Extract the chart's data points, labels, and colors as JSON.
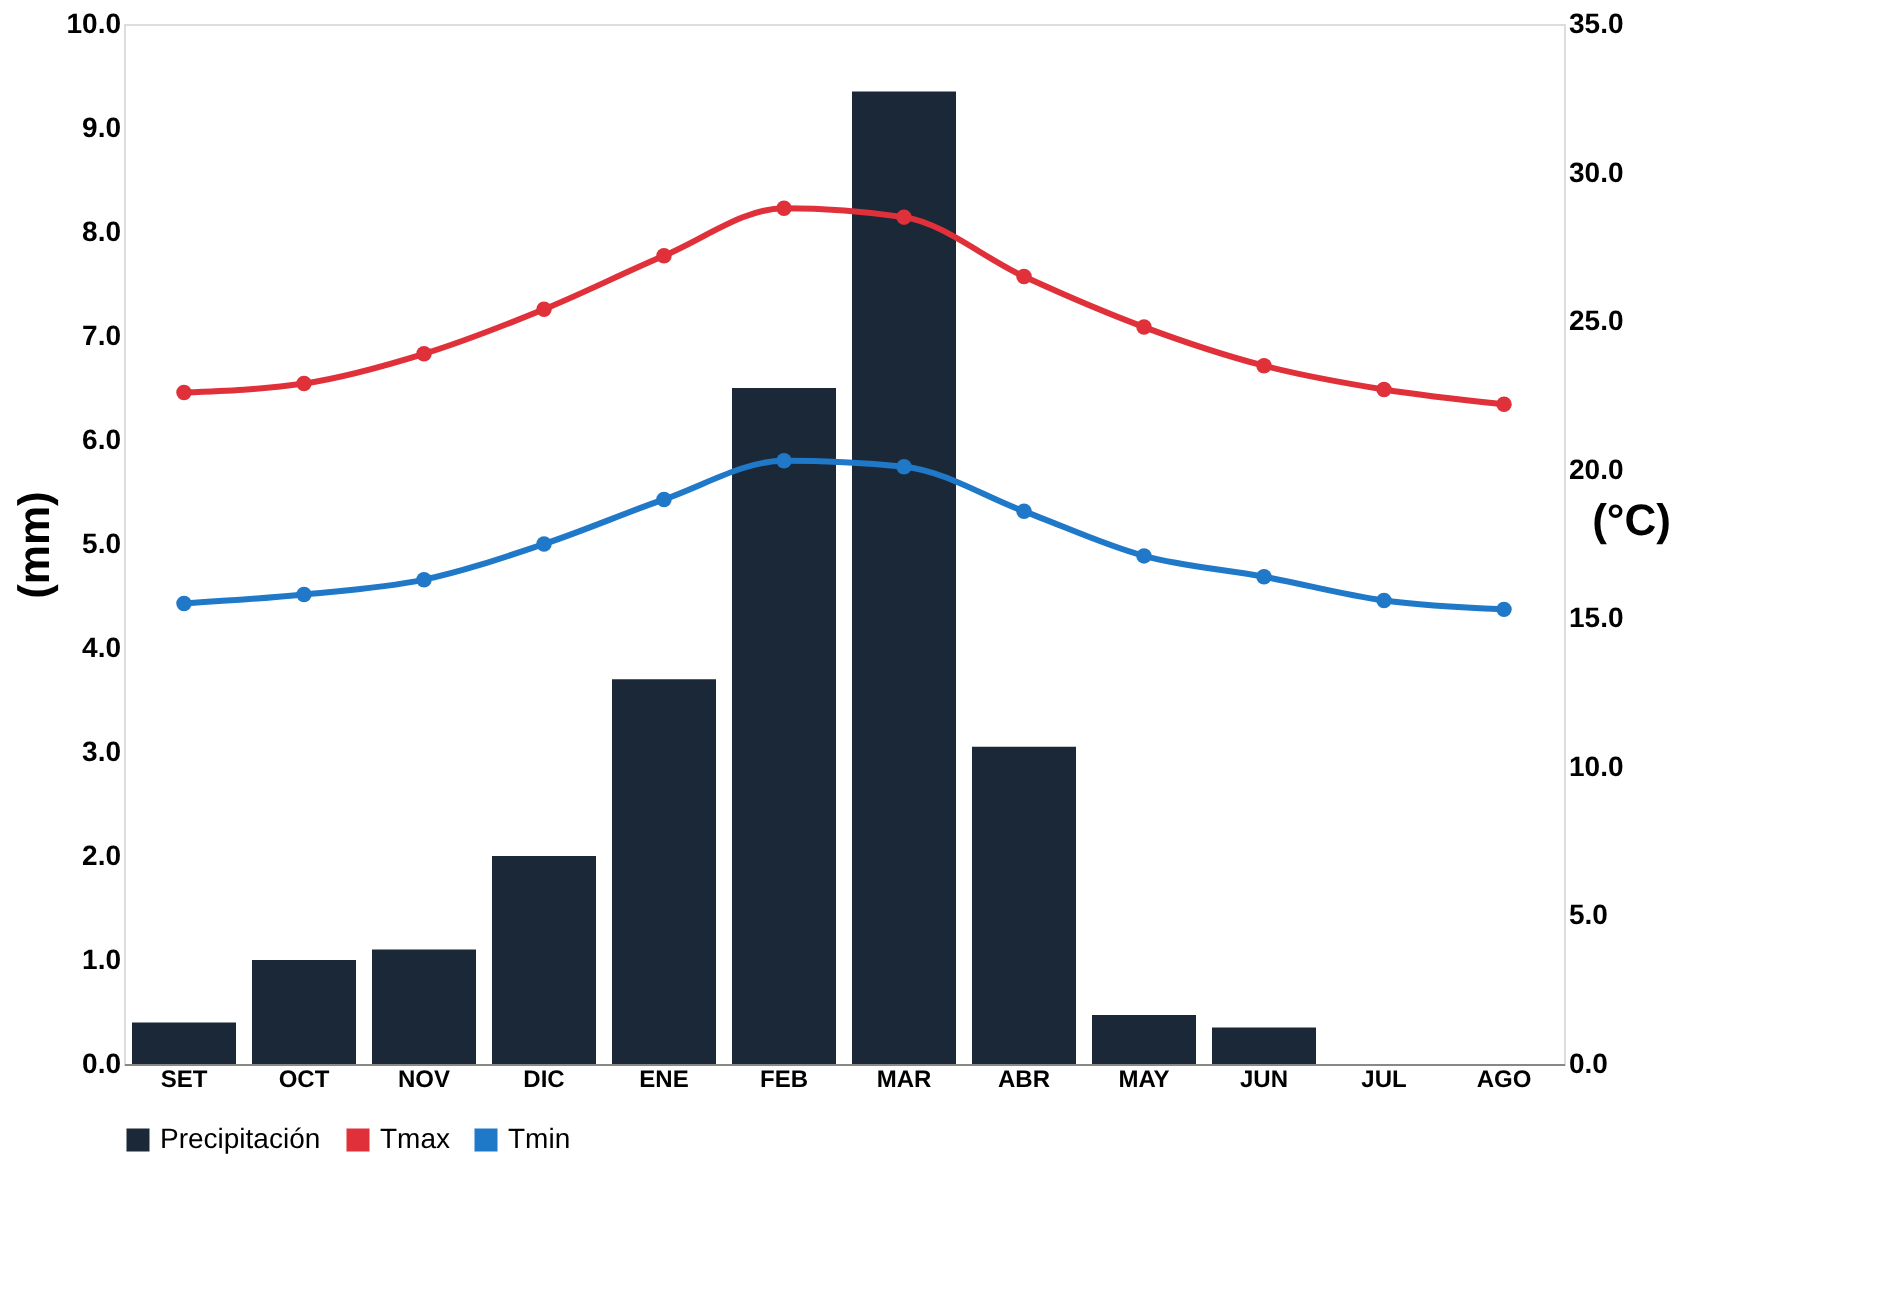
{
  "chart_data": {
    "type": "bar",
    "ylabel": "(mm)",
    "y2label": "(°C)",
    "categories": [
      "SET",
      "OCT",
      "NOV",
      "DIC",
      "ENE",
      "FEB",
      "MAR",
      "ABR",
      "MAY",
      "JUN",
      "JUL",
      "AGO"
    ],
    "series": [
      {
        "name": "Precipitación",
        "color": "#1b2838",
        "values": [
          0.4,
          1.0,
          1.1,
          2.0,
          3.7,
          6.5,
          9.35,
          3.05,
          0.47,
          0.35,
          0,
          0
        ]
      },
      {
        "name": "Tmax",
        "type": "line",
        "axis": "y2",
        "color": "#e0303a",
        "marker": "circle",
        "values": [
          22.6,
          22.9,
          23.9,
          25.4,
          27.2,
          28.8,
          28.5,
          26.5,
          24.8,
          23.5,
          22.7,
          22.2
        ]
      },
      {
        "name": "Tmin",
        "type": "line",
        "axis": "y2",
        "color": "#1f78c8",
        "marker": "circle",
        "values": [
          15.5,
          15.8,
          16.3,
          17.5,
          19.0,
          20.3,
          20.1,
          18.6,
          17.1,
          16.4,
          15.6,
          15.3
        ]
      }
    ],
    "ylim": [
      0,
      10
    ],
    "yticks": [
      {
        "value": 0,
        "label": "0.0"
      },
      {
        "value": 1,
        "label": "1.0"
      },
      {
        "value": 2,
        "label": "2.0"
      },
      {
        "value": 3,
        "label": "3.0"
      },
      {
        "value": 4,
        "label": "4.0"
      },
      {
        "value": 5,
        "label": "5.0"
      },
      {
        "value": 6,
        "label": "6.0"
      },
      {
        "value": 7,
        "label": "7.0"
      },
      {
        "value": 8,
        "label": "8.0"
      },
      {
        "value": 9,
        "label": "9.0"
      },
      {
        "value": 10,
        "label": "10.0"
      }
    ],
    "y2lim": [
      0,
      35
    ],
    "y2ticks": [
      {
        "value": 0,
        "label": "0.0"
      },
      {
        "value": 5,
        "label": "5.0"
      },
      {
        "value": 10,
        "label": "10.0"
      },
      {
        "value": 15,
        "label": "15.0"
      },
      {
        "value": 20,
        "label": "20.0"
      },
      {
        "value": 25,
        "label": "25.0"
      },
      {
        "value": 30,
        "label": "30.0"
      },
      {
        "value": 35,
        "label": "35.0"
      }
    ],
    "grid": false,
    "legend": "bottom"
  }
}
